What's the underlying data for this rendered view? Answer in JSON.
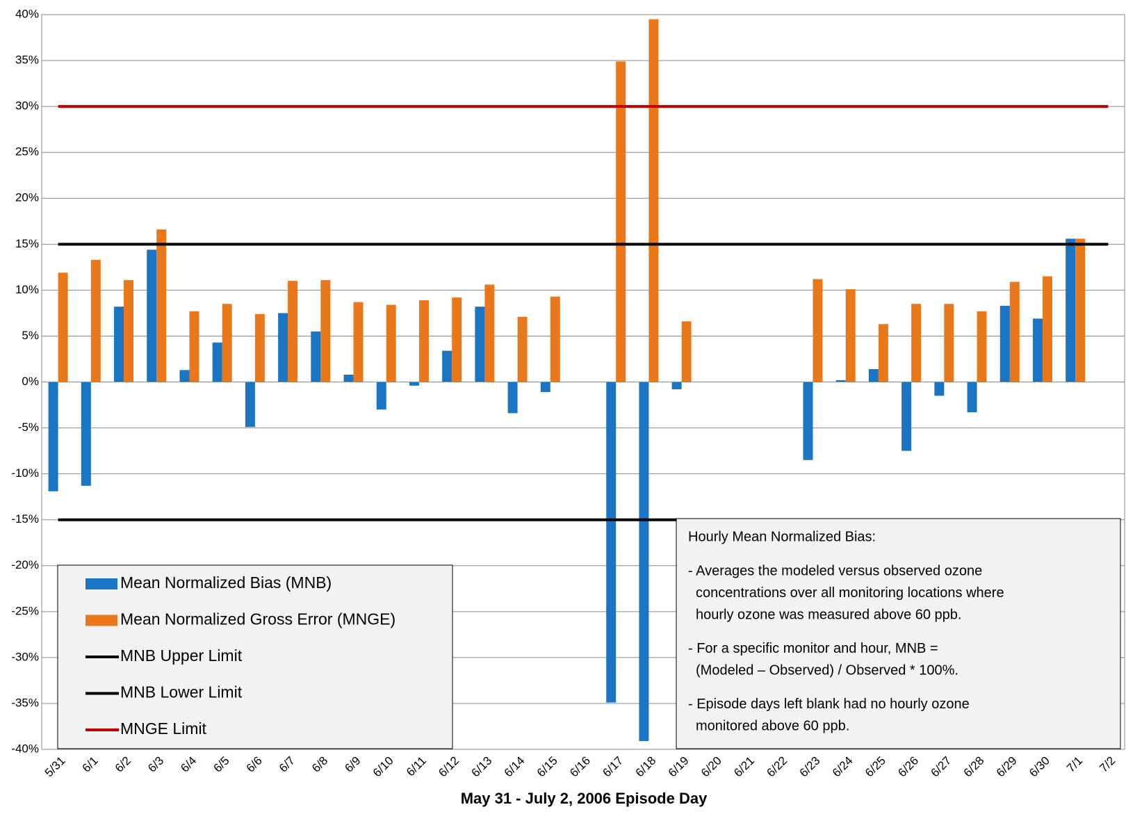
{
  "chart_data": {
    "type": "bar",
    "x_label": "May 31 - July 2, 2006 Episode Day",
    "categories": [
      "5/31",
      "6/1",
      "6/2",
      "6/3",
      "6/4",
      "6/5",
      "6/6",
      "6/7",
      "6/8",
      "6/9",
      "6/10",
      "6/11",
      "6/12",
      "6/13",
      "6/14",
      "6/15",
      "6/16",
      "6/17",
      "6/18",
      "6/19",
      "6/20",
      "6/21",
      "6/22",
      "6/23",
      "6/24",
      "6/25",
      "6/26",
      "6/27",
      "6/28",
      "6/29",
      "6/30",
      "7/1",
      "7/2"
    ],
    "series": [
      {
        "name": "Mean Normalized Bias (MNB)",
        "color": "#1a75c5",
        "values": [
          -11.9,
          -11.3,
          8.2,
          14.4,
          1.3,
          4.3,
          -4.9,
          7.5,
          5.5,
          0.8,
          -3.0,
          -0.4,
          3.4,
          8.2,
          -3.4,
          -1.1,
          null,
          -34.9,
          -39.1,
          -0.8,
          null,
          null,
          null,
          -8.5,
          0.2,
          1.4,
          -7.5,
          -1.5,
          -3.3,
          8.3,
          6.9,
          15.6,
          null
        ]
      },
      {
        "name": "Mean Normalized Gross Error (MNGE)",
        "color": "#e9771c",
        "values": [
          11.9,
          13.3,
          11.1,
          16.6,
          7.7,
          8.5,
          7.4,
          11.0,
          11.1,
          8.7,
          8.4,
          8.9,
          9.2,
          10.6,
          7.1,
          9.3,
          null,
          34.9,
          39.5,
          6.6,
          null,
          null,
          null,
          11.2,
          10.1,
          6.3,
          8.5,
          8.5,
          7.7,
          10.9,
          11.5,
          15.6,
          null
        ]
      }
    ],
    "limits": [
      {
        "name": "MNB Upper Limit",
        "color": "#000000",
        "value": 15
      },
      {
        "name": "MNB Lower Limit",
        "color": "#000000",
        "value": -15
      },
      {
        "name": "MNGE Limit",
        "color": "#c00000",
        "value": 30
      }
    ],
    "ylim": [
      -40,
      40
    ],
    "yticks": [
      {
        "value": -40,
        "label": "-40%"
      },
      {
        "value": -35,
        "label": "-35%"
      },
      {
        "value": -30,
        "label": "-30%"
      },
      {
        "value": -25,
        "label": "-25%"
      },
      {
        "value": -20,
        "label": "-20%"
      },
      {
        "value": -15,
        "label": "-15%"
      },
      {
        "value": -10,
        "label": "-10%"
      },
      {
        "value": -5,
        "label": "-5%"
      },
      {
        "value": 0,
        "label": "0%"
      },
      {
        "value": 5,
        "label": "5%"
      },
      {
        "value": 10,
        "label": "10%"
      },
      {
        "value": 15,
        "label": "15%"
      },
      {
        "value": 20,
        "label": "20%"
      },
      {
        "value": 25,
        "label": "25%"
      },
      {
        "value": 30,
        "label": "30%"
      },
      {
        "value": 35,
        "label": "35%"
      },
      {
        "value": 40,
        "label": "40%"
      }
    ],
    "grid": true,
    "legend": "bottom-left",
    "note": {
      "title": "Hourly Mean Normalized Bias:",
      "items": [
        [
          "- Averages the modeled versus observed ozone",
          "concentrations over all monitoring locations where",
          "hourly ozone was measured above 60 ppb."
        ],
        [
          "- For a specific monitor and hour, MNB =",
          "(Modeled – Observed) / Observed * 100%."
        ],
        [
          "- Episode days left blank had no hourly ozone",
          "monitored above 60 ppb."
        ]
      ]
    }
  }
}
